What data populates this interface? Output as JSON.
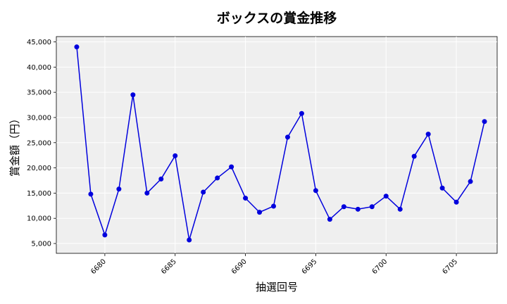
{
  "chart_data": {
    "type": "line",
    "title": "ボックスの賞金推移",
    "xlabel": "抽選回号",
    "ylabel": "賞金額（円）",
    "x": [
      6678,
      6679,
      6680,
      6681,
      6682,
      6683,
      6684,
      6685,
      6686,
      6687,
      6688,
      6689,
      6690,
      6691,
      6692,
      6693,
      6694,
      6695,
      6696,
      6697,
      6698,
      6699,
      6700,
      6701,
      6702,
      6703,
      6704,
      6705,
      6706,
      6707
    ],
    "series": [
      {
        "values": [
          44000,
          14800,
          6700,
          15800,
          34500,
          15000,
          17800,
          22400,
          5700,
          15200,
          18000,
          20200,
          14000,
          11200,
          12400,
          26100,
          30800,
          15500,
          9800,
          12300,
          11800,
          12300,
          14400,
          11800,
          22300,
          26700,
          16000,
          13200,
          17300,
          29200
        ],
        "color": "#0000dd"
      }
    ],
    "xticks": [
      "6680",
      "6685",
      "6690",
      "6695",
      "6700",
      "6705"
    ],
    "yticks": [
      "5,000",
      "10,000",
      "15,000",
      "20,000",
      "25,000",
      "30,000",
      "35,000",
      "40,000",
      "45,000"
    ],
    "xlim": [
      6676.55,
      6707.9
    ],
    "ylim": [
      3050,
      46050
    ],
    "grid": true,
    "plot_background": "#efefef",
    "grid_color": "#ffffff"
  }
}
